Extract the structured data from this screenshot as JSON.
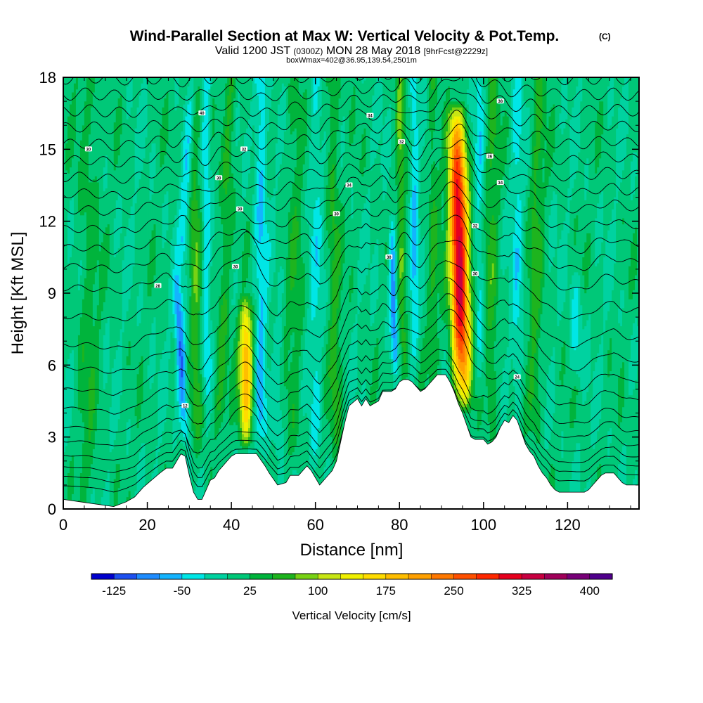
{
  "chart_data": {
    "type": "heatmap",
    "title": "Wind-Parallel Section at Max W: Vertical Velocity & Pot.Temp.",
    "title_mark": "(C)",
    "subtitle": {
      "valid": "Valid 1200 JST",
      "utc": "(0300Z)",
      "date": "MON 28 May 2018",
      "forecast": "[9hrFcst@2229z]"
    },
    "info": "boxWmax=402@36.95,139.54,2501m",
    "xlabel": "Distance [nm]",
    "ylabel": "Height [Kft MSL]",
    "xlim": [
      0,
      137
    ],
    "ylim": [
      0,
      18
    ],
    "xticks": [
      "0",
      "20",
      "40",
      "60",
      "80",
      "100",
      "120"
    ],
    "yticks": [
      "0",
      "3",
      "6",
      "9",
      "12",
      "15",
      "18"
    ],
    "colorbar": {
      "label": "Vertical Velocity [cm/s]",
      "tick_labels": [
        "-125",
        "-50",
        "25",
        "100",
        "175",
        "250",
        "325",
        "400"
      ],
      "levels": [
        -150,
        -125,
        -100,
        -75,
        -50,
        -25,
        0,
        25,
        50,
        75,
        100,
        125,
        150,
        175,
        200,
        225,
        250,
        275,
        300,
        325,
        350,
        375,
        400,
        425
      ],
      "colors": [
        "#0000cd",
        "#1e50f0",
        "#1e8cff",
        "#14b4ff",
        "#00e6e6",
        "#00d2a0",
        "#00c878",
        "#00b43c",
        "#1eb41e",
        "#78d214",
        "#c8e614",
        "#f0f000",
        "#ffdc00",
        "#ffbe00",
        "#ffa000",
        "#ff7800",
        "#ff5000",
        "#ff2800",
        "#e6001e",
        "#c80041",
        "#a0005a",
        "#780078",
        "#50008c"
      ]
    },
    "terrain_profile": [
      [
        0,
        0.4
      ],
      [
        4,
        0.3
      ],
      [
        8,
        0.2
      ],
      [
        12,
        0.1
      ],
      [
        15,
        0.3
      ],
      [
        17,
        0.5
      ],
      [
        19,
        0.9
      ],
      [
        21,
        1.2
      ],
      [
        23,
        1.5
      ],
      [
        24.5,
        1.7
      ],
      [
        26,
        1.7
      ],
      [
        27,
        2.0
      ],
      [
        28,
        2.3
      ],
      [
        29,
        2.2
      ],
      [
        30,
        1.4
      ],
      [
        31,
        0.7
      ],
      [
        32,
        0.4
      ],
      [
        33,
        0.4
      ],
      [
        34,
        0.8
      ],
      [
        35,
        1.2
      ],
      [
        36,
        1.3
      ],
      [
        37,
        1.6
      ],
      [
        38,
        1.8
      ],
      [
        39,
        2.0
      ],
      [
        40,
        2.2
      ],
      [
        41,
        2.3
      ],
      [
        44,
        2.3
      ],
      [
        46,
        2.3
      ],
      [
        48,
        1.8
      ],
      [
        49,
        1.5
      ],
      [
        51,
        1.0
      ],
      [
        53,
        1.1
      ],
      [
        54,
        1.4
      ],
      [
        56,
        1.4
      ],
      [
        57,
        1.6
      ],
      [
        58,
        1.8
      ],
      [
        59,
        1.6
      ],
      [
        60,
        1.3
      ],
      [
        61,
        1.0
      ],
      [
        62,
        1.2
      ],
      [
        63,
        1.4
      ],
      [
        64,
        1.6
      ],
      [
        65,
        2.0
      ],
      [
        66,
        2.8
      ],
      [
        67,
        3.6
      ],
      [
        68,
        4.3
      ],
      [
        70,
        4.6
      ],
      [
        71,
        4.3
      ],
      [
        72,
        4.6
      ],
      [
        73,
        4.3
      ],
      [
        75,
        4.5
      ],
      [
        76,
        4.9
      ],
      [
        78,
        4.9
      ],
      [
        79,
        5.0
      ],
      [
        80,
        5.3
      ],
      [
        81,
        5.4
      ],
      [
        82,
        5.4
      ],
      [
        83,
        5.3
      ],
      [
        84,
        5.1
      ],
      [
        85,
        4.9
      ],
      [
        86,
        5.0
      ],
      [
        87,
        5.2
      ],
      [
        88,
        5.4
      ],
      [
        89,
        5.6
      ],
      [
        91,
        5.6
      ],
      [
        92,
        5.3
      ],
      [
        93,
        4.9
      ],
      [
        94,
        4.4
      ],
      [
        95,
        4.0
      ],
      [
        96,
        3.5
      ],
      [
        97,
        3.0
      ],
      [
        98,
        2.9
      ],
      [
        100,
        2.9
      ],
      [
        101,
        2.7
      ],
      [
        102,
        2.8
      ],
      [
        103,
        3.0
      ],
      [
        104,
        3.4
      ],
      [
        105,
        3.7
      ],
      [
        106,
        3.6
      ],
      [
        107,
        3.9
      ],
      [
        108,
        3.7
      ],
      [
        109,
        3.2
      ],
      [
        110,
        2.7
      ],
      [
        111,
        2.4
      ],
      [
        112,
        2.2
      ],
      [
        113,
        1.8
      ],
      [
        114,
        1.5
      ],
      [
        115,
        1.3
      ],
      [
        116,
        1.0
      ],
      [
        117,
        0.8
      ],
      [
        118,
        0.7
      ],
      [
        121,
        0.7
      ],
      [
        124,
        0.7
      ],
      [
        125,
        0.8
      ],
      [
        126,
        1.0
      ],
      [
        127,
        1.2
      ],
      [
        128,
        1.4
      ],
      [
        129,
        1.5
      ],
      [
        131,
        1.5
      ],
      [
        132,
        1.3
      ],
      [
        133,
        1.1
      ],
      [
        134,
        1.0
      ],
      [
        137,
        1.0
      ]
    ],
    "updrafts": [
      {
        "x": 43.5,
        "x_at_zmax": 43.5,
        "zmin": 2.5,
        "zmax": 9.0,
        "halfwidth": 1.6,
        "peak": 200
      },
      {
        "x": 95.0,
        "x_at_zmax": 93.5,
        "zmin": 4.0,
        "zmax": 17.0,
        "halfwidth": 2.2,
        "peak": 345
      },
      {
        "x": 81.0,
        "x_at_zmax": 80.0,
        "zmin": 5.0,
        "zmax": 18.0,
        "halfwidth": 1.0,
        "peak": 60
      },
      {
        "x": 32.0,
        "x_at_zmax": 31.0,
        "zmin": 2.5,
        "zmax": 18.0,
        "halfwidth": 1.4,
        "peak": 55
      },
      {
        "x": 37.0,
        "x_at_zmax": 40.0,
        "zmin": 3.0,
        "zmax": 18.0,
        "halfwidth": 1.4,
        "peak": 50
      },
      {
        "x": 65.0,
        "x_at_zmax": 64.0,
        "zmin": 2.0,
        "zmax": 18.0,
        "halfwidth": 1.5,
        "peak": 45
      },
      {
        "x": 102.0,
        "x_at_zmax": 102.0,
        "zmin": 3.0,
        "zmax": 18.0,
        "halfwidth": 1.5,
        "peak": 45
      },
      {
        "x": 112.0,
        "x_at_zmax": 113.0,
        "zmin": 3.0,
        "zmax": 18.0,
        "halfwidth": 1.6,
        "peak": 45
      },
      {
        "x": 88.0,
        "x_at_zmax": 88.0,
        "zmin": 5.0,
        "zmax": 18.0,
        "halfwidth": 1.2,
        "peak": 40
      },
      {
        "x": 6.0,
        "x_at_zmax": 6.0,
        "zmin": 0.5,
        "zmax": 18.0,
        "halfwidth": 2.5,
        "peak": 30
      },
      {
        "x": 55.0,
        "x_at_zmax": 55.0,
        "zmin": 2.0,
        "zmax": 18.0,
        "halfwidth": 2.0,
        "peak": 30
      }
    ],
    "downdrafts": [
      {
        "x": 29.0,
        "x_at_zmax": 27.0,
        "zmin": 2.5,
        "zmax": 10.0,
        "halfwidth": 1.1,
        "peak": -120
      },
      {
        "x": 79.0,
        "x_at_zmax": 78.0,
        "zmin": 5.5,
        "zmax": 12.5,
        "halfwidth": 0.9,
        "peak": -110
      },
      {
        "x": 47.0,
        "x_at_zmax": 47.0,
        "zmin": 2.5,
        "zmax": 18.0,
        "halfwidth": 1.5,
        "peak": -60
      },
      {
        "x": 34.0,
        "x_at_zmax": 34.0,
        "zmin": 5.0,
        "zmax": 18.0,
        "halfwidth": 1.1,
        "peak": -55
      },
      {
        "x": 83.5,
        "x_at_zmax": 83.5,
        "zmin": 6.0,
        "zmax": 18.0,
        "halfwidth": 1.0,
        "peak": -55
      },
      {
        "x": 28.0,
        "x_at_zmax": 31.0,
        "zmin": 10.0,
        "zmax": 18.0,
        "halfwidth": 1.2,
        "peak": -55
      },
      {
        "x": 122.0,
        "x_at_zmax": 122.0,
        "zmin": 5.0,
        "zmax": 10.0,
        "halfwidth": 1.5,
        "peak": -45
      },
      {
        "x": 99.0,
        "x_at_zmax": 99.0,
        "zmin": 5.0,
        "zmax": 18.0,
        "halfwidth": 1.1,
        "peak": -40
      },
      {
        "x": 108.0,
        "x_at_zmax": 108.0,
        "zmin": 4.0,
        "zmax": 18.0,
        "halfwidth": 1.3,
        "peak": -40
      },
      {
        "x": 60.0,
        "x_at_zmax": 60.0,
        "zmin": 1.5,
        "zmax": 18.0,
        "halfwidth": 1.5,
        "peak": -35
      },
      {
        "x": 51.0,
        "x_at_zmax": 51.0,
        "zmin": 2.0,
        "zmax": 8.0,
        "halfwidth": 1.2,
        "peak": -45
      }
    ],
    "theta_levels_kft": [
      0.6,
      1.0,
      1.4,
      1.9,
      2.5,
      3.1,
      3.9,
      4.7,
      5.6,
      6.6,
      7.8,
      9.0,
      9.9,
      10.7,
      11.5,
      12.3,
      13.0,
      13.7,
      14.4,
      15.1,
      15.8,
      16.5,
      17.2,
      17.9
    ],
    "contour_labels": [
      {
        "text": "30",
        "x": 6,
        "y": 15.0
      },
      {
        "text": "40",
        "x": 33,
        "y": 16.5
      },
      {
        "text": "30",
        "x": 37,
        "y": 13.8
      },
      {
        "text": "32",
        "x": 43,
        "y": 15.0
      },
      {
        "text": "30",
        "x": 42,
        "y": 12.5
      },
      {
        "text": "30",
        "x": 41,
        "y": 10.1
      },
      {
        "text": "28",
        "x": 22.5,
        "y": 9.3
      },
      {
        "text": "12",
        "x": 29,
        "y": 4.3
      },
      {
        "text": "34",
        "x": 73,
        "y": 16.4
      },
      {
        "text": "34",
        "x": 68,
        "y": 13.5
      },
      {
        "text": "30",
        "x": 65,
        "y": 12.3
      },
      {
        "text": "32",
        "x": 80.5,
        "y": 15.3
      },
      {
        "text": "30",
        "x": 77.5,
        "y": 10.5
      },
      {
        "text": "38",
        "x": 104,
        "y": 17.0
      },
      {
        "text": "36",
        "x": 101.5,
        "y": 14.7
      },
      {
        "text": "34",
        "x": 104,
        "y": 13.6
      },
      {
        "text": "32",
        "x": 98,
        "y": 11.8
      },
      {
        "text": "30",
        "x": 98,
        "y": 9.8
      },
      {
        "text": "24",
        "x": 108,
        "y": 5.5
      }
    ]
  }
}
